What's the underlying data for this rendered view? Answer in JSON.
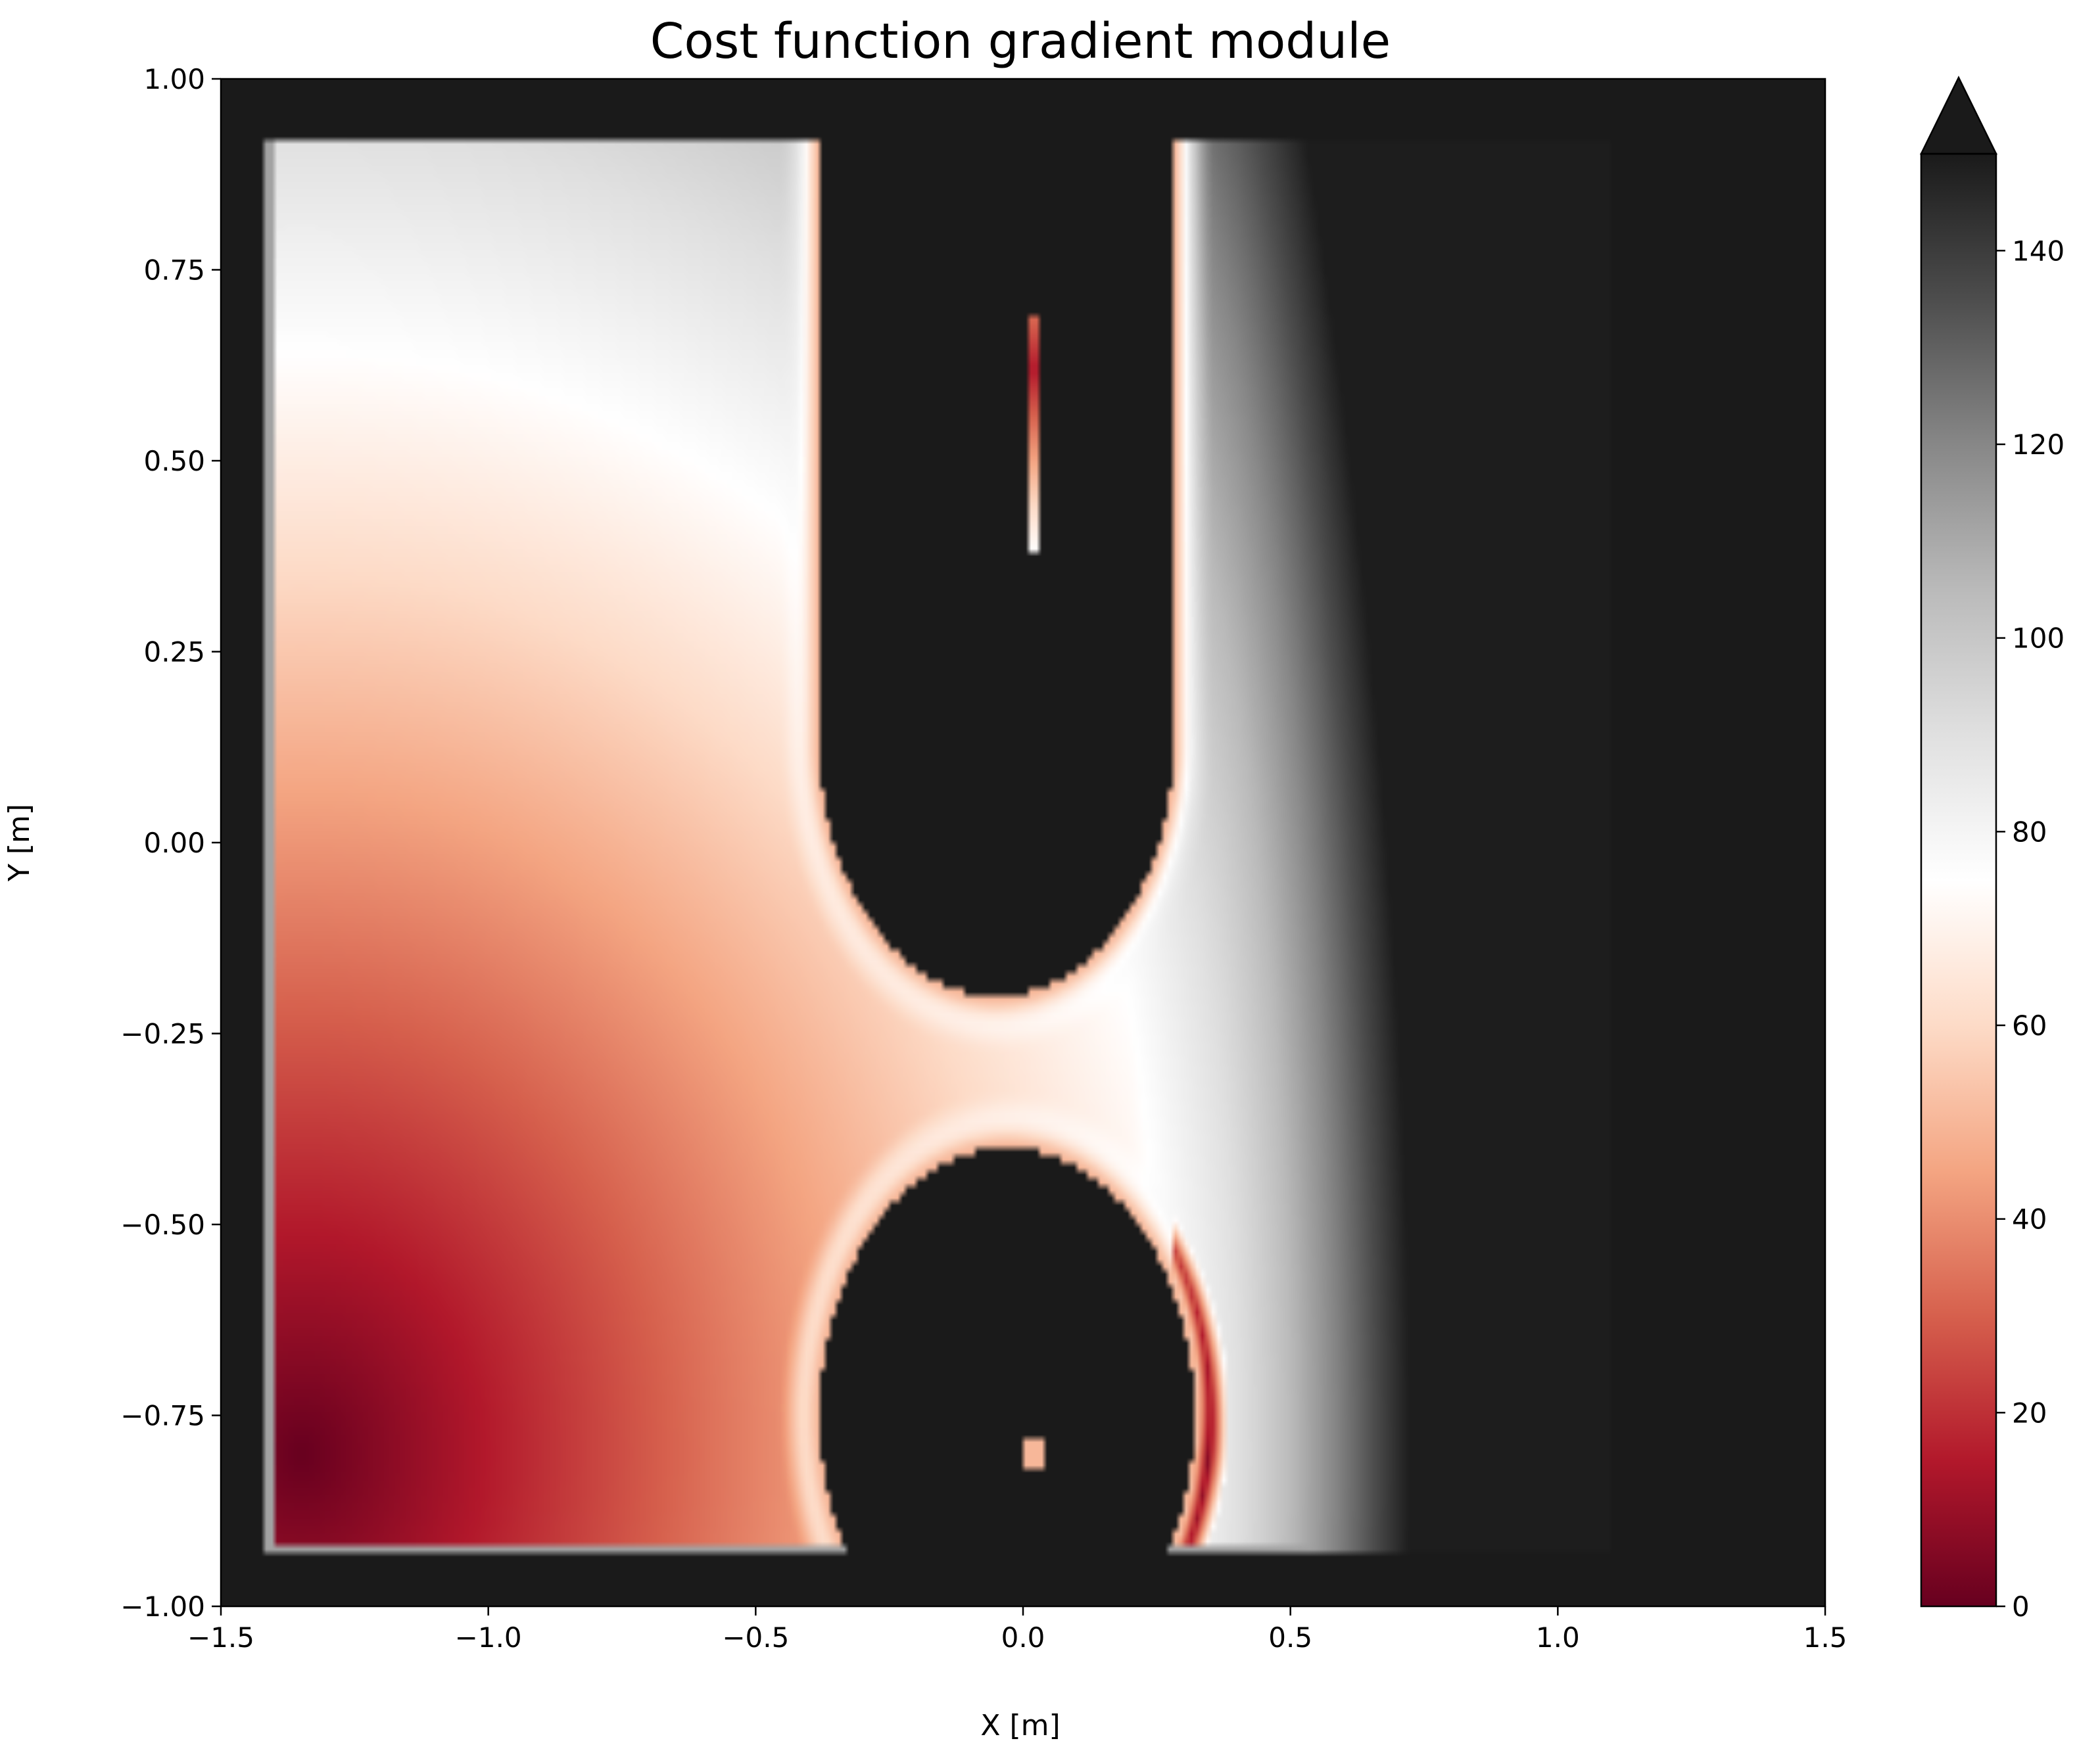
{
  "chart_data": {
    "type": "heatmap",
    "title": "Cost function gradient module",
    "xlabel": "X [m]",
    "ylabel": "Y [m]",
    "xlim": [
      -1.5,
      1.5
    ],
    "ylim": [
      -1.0,
      1.0
    ],
    "x_ticks": [
      -1.5,
      -1.0,
      -0.5,
      0.0,
      0.5,
      1.0,
      1.5
    ],
    "x_tick_labels": [
      "−1.5",
      "−1.0",
      "−0.5",
      "0.0",
      "0.5",
      "1.0",
      "1.5"
    ],
    "y_ticks": [
      1.0,
      0.75,
      0.5,
      0.25,
      0.0,
      -0.25,
      -0.5,
      -0.75,
      -1.0
    ],
    "y_tick_labels": [
      "1.00",
      "0.75",
      "0.50",
      "0.25",
      "0.00",
      "−0.25",
      "−0.50",
      "−0.75",
      "−1.00"
    ],
    "colorbar": {
      "vmin": 0,
      "vmax": 150,
      "extend": "max",
      "ticks": [
        0,
        20,
        40,
        60,
        80,
        100,
        120,
        140
      ],
      "tick_labels": [
        "0",
        "20",
        "40",
        "60",
        "80",
        "100",
        "120",
        "140"
      ],
      "stops": [
        "#67001f",
        "#b2182b",
        "#d6604d",
        "#f4a582",
        "#fddbc7",
        "#ffffff",
        "#e0e0e0",
        "#bababa",
        "#878787",
        "#4d4d4d",
        "#1a1a1a"
      ],
      "over_color": "#1a1a1a"
    },
    "field": {
      "domain": {
        "x": [
          -1.42,
          1.1
        ],
        "y": [
          -0.93,
          0.92
        ]
      },
      "minimum": {
        "x": -1.35,
        "y": -0.8,
        "value": 0
      },
      "obstacles": [
        {
          "shape": "u",
          "cx": -0.05,
          "y_bottom": -0.2,
          "y_top": 0.92,
          "half_width": 0.33,
          "value": 150
        },
        {
          "shape": "circle",
          "cx": -0.03,
          "cy": -0.75,
          "r": 0.35,
          "value": 150
        }
      ],
      "local_minima": [
        {
          "x": 0.02,
          "y": 0.62,
          "value": 15
        },
        {
          "x": 0.02,
          "y": -0.8,
          "value": 50
        },
        {
          "x": 0.37,
          "y": -0.8,
          "value": 5
        }
      ],
      "background_value": 150
    }
  }
}
